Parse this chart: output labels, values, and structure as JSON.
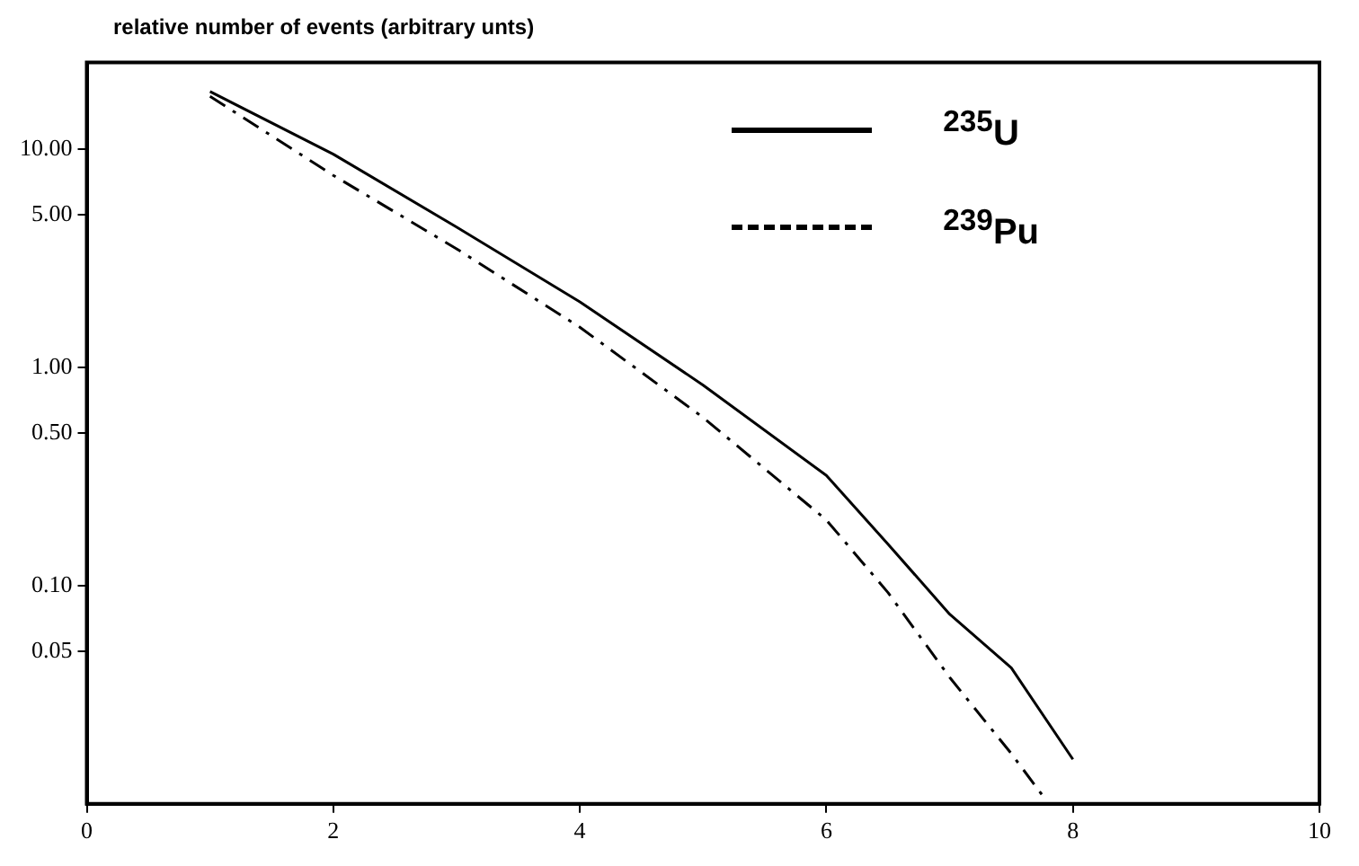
{
  "chart_data": {
    "type": "line",
    "ylabel": "relative number of events (arbitrary unts)",
    "xlim": [
      0,
      10
    ],
    "xticks": [
      0,
      2,
      4,
      6,
      8,
      10
    ],
    "ylim": [
      0.01,
      25
    ],
    "yticks": [
      {
        "value": 0.05,
        "label": "0.05"
      },
      {
        "value": 0.1,
        "label": "0.10"
      },
      {
        "value": 0.5,
        "label": "0.50"
      },
      {
        "value": 1,
        "label": "1.00"
      },
      {
        "value": 5,
        "label": "5.00"
      },
      {
        "value": 10,
        "label": "10.00"
      }
    ],
    "log": "y",
    "grid": false,
    "legend": "top right",
    "marker": "none",
    "series": [
      {
        "name": "$^{235}$U",
        "color": "#000000",
        "line_style": "solid",
        "x": [
          1,
          2,
          3,
          4,
          5,
          6,
          6.5,
          7,
          7.5,
          8
        ],
        "values": [
          18.4,
          9.5,
          4.4,
          2.0,
          0.83,
          0.32,
          0.155,
          0.074,
          0.042,
          0.016
        ]
      },
      {
        "name": "$^{239}$Pu",
        "color": "#000000",
        "line_style": "dashed",
        "x": [
          1,
          2,
          3,
          4,
          5,
          6,
          6.5,
          7,
          7.5,
          7.75
        ],
        "values": [
          17.5,
          7.6,
          3.5,
          1.53,
          0.59,
          0.2,
          0.093,
          0.038,
          0.017,
          0.011
        ]
      }
    ]
  }
}
